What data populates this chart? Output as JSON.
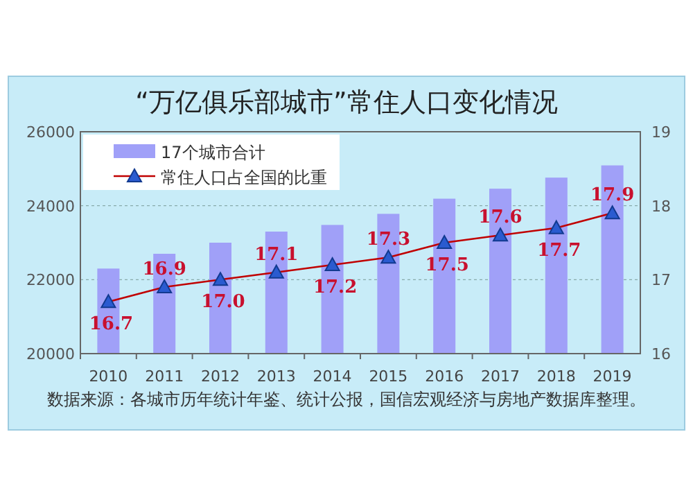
{
  "chart_data": {
    "type": "bar",
    "title": "“万亿俱乐部城市”常住人口变化情况",
    "categories": [
      "2010",
      "2011",
      "2012",
      "2013",
      "2014",
      "2015",
      "2016",
      "2017",
      "2018",
      "2019"
    ],
    "series": [
      {
        "name": "17个城市合计",
        "color": "#a0a0f8",
        "values": [
          22300,
          22700,
          23000,
          23300,
          23480,
          23780,
          24190,
          24460,
          24760,
          25090
        ]
      },
      {
        "name": "常住人口占全国的比重",
        "type": "line",
        "axis": "y2",
        "color": "#c00000",
        "values": [
          16.7,
          16.9,
          17.0,
          17.1,
          17.2,
          17.3,
          17.5,
          17.6,
          17.7,
          17.9
        ],
        "value_labels": [
          "16.7",
          "16.9",
          "17.0",
          "17.1",
          "17.2",
          "17.3",
          "17.5",
          "17.6",
          "17.7",
          "17.9"
        ]
      }
    ],
    "ylim": [
      20000,
      26000
    ],
    "yticks": [
      20000,
      22000,
      24000,
      26000
    ],
    "y2lim": [
      16,
      19
    ],
    "y2ticks": [
      16,
      17,
      18,
      19
    ],
    "grid": "y",
    "legend": "top left",
    "marker": "triangle",
    "annotations": [
      "数据来源：各城市历年统计年鉴、统计公报，国信宏观经济与房地产数据库整理。"
    ]
  }
}
